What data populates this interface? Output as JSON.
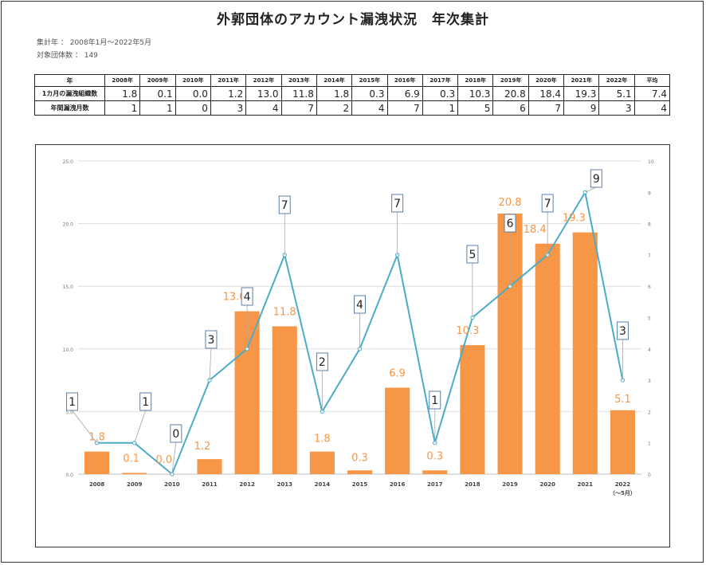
{
  "title": "外郭団体のアカウント漏洩状況　年次集計",
  "meta": {
    "period": "集計年 ： 2008年1月～2022年5月",
    "count": "対象団体数 ： 149"
  },
  "table": {
    "header_label": "年",
    "years": [
      "2008年",
      "2009年",
      "2010年",
      "2011年",
      "2012年",
      "2013年",
      "2014年",
      "2015年",
      "2016年",
      "2017年",
      "2018年",
      "2019年",
      "2020年",
      "2021年",
      "2022年",
      "平均"
    ],
    "rows": [
      {
        "label": "1カ月の漏洩組織数",
        "values": [
          "1.8",
          "0.1",
          "0.0",
          "1.2",
          "13.0",
          "11.8",
          "1.8",
          "0.3",
          "6.9",
          "0.3",
          "10.3",
          "20.8",
          "18.4",
          "19.3",
          "5.1",
          "7.4"
        ]
      },
      {
        "label": "年間漏洩月数",
        "values": [
          "1",
          "1",
          "0",
          "3",
          "4",
          "7",
          "2",
          "4",
          "7",
          "1",
          "5",
          "6",
          "7",
          "9",
          "3",
          "4"
        ]
      }
    ]
  },
  "chart_data": {
    "type": "bar",
    "categories": [
      "2008",
      "2009",
      "2010",
      "2011",
      "2012",
      "2013",
      "2014",
      "2015",
      "2016",
      "2017",
      "2018",
      "2019",
      "2020",
      "2021",
      "2022"
    ],
    "category_sublabels": [
      "",
      "",
      "",
      "",
      "",
      "",
      "",
      "",
      "",
      "",
      "",
      "",
      "",
      "",
      "（～5月）"
    ],
    "series": [
      {
        "type": "bar",
        "axis": "left",
        "values": [
          1.8,
          0.1,
          0.0,
          1.2,
          13.0,
          11.8,
          1.8,
          0.3,
          6.9,
          0.3,
          10.3,
          20.8,
          18.4,
          19.3,
          5.1
        ],
        "labels": [
          "1.8",
          "0.1",
          "0.0",
          "1.2",
          "13.0",
          "11.8",
          "1.8",
          "0.3",
          "6.9",
          "0.3",
          "10.3",
          "20.8",
          "18.4",
          "19.3",
          "5.1"
        ],
        "color": "#f79646"
      },
      {
        "type": "line",
        "axis": "right",
        "values": [
          1,
          1,
          0,
          3,
          4,
          7,
          2,
          4,
          7,
          1,
          5,
          6,
          7,
          9,
          3
        ],
        "labels": [
          "1",
          "1",
          "0",
          "3",
          "4",
          "7",
          "2",
          "4",
          "7",
          "1",
          "5",
          "6",
          "7",
          "9",
          "3"
        ],
        "color": "#4bacc6"
      }
    ],
    "y_left": {
      "min": 0,
      "max": 25,
      "ticks": [
        "0.0",
        "5.0",
        "10.0",
        "15.0",
        "20.0",
        "25.0"
      ],
      "values": [
        0,
        5,
        10,
        15,
        20,
        25
      ]
    },
    "y_right": {
      "min": 0,
      "max": 10,
      "ticks": [
        "0",
        "1",
        "2",
        "3",
        "4",
        "5",
        "6",
        "7",
        "8",
        "9",
        "10"
      ],
      "values": [
        0,
        1,
        2,
        3,
        4,
        5,
        6,
        7,
        8,
        9,
        10
      ]
    },
    "grid": true,
    "legend": "none"
  }
}
